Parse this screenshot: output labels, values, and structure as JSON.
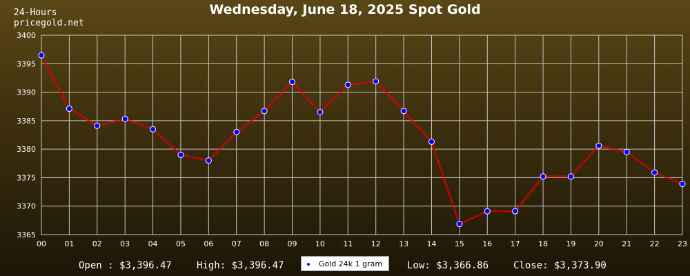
{
  "header": {
    "period": "24-Hours",
    "site": "pricegold.net"
  },
  "chart_data": {
    "type": "line",
    "title": "Wednesday, June 18, 2025 Spot Gold",
    "categories": [
      "00",
      "01",
      "02",
      "03",
      "04",
      "05",
      "06",
      "07",
      "08",
      "09",
      "10",
      "11",
      "12",
      "13",
      "14",
      "15",
      "16",
      "17",
      "18",
      "19",
      "20",
      "21",
      "22",
      "23"
    ],
    "series": [
      {
        "name": "Gold 24k 1 gram",
        "values": [
          3396.47,
          3387.1,
          3384.1,
          3385.3,
          3383.5,
          3379.0,
          3378.0,
          3383.0,
          3386.7,
          3391.8,
          3386.5,
          3391.3,
          3391.9,
          3386.7,
          3381.3,
          3366.86,
          3369.1,
          3369.1,
          3375.2,
          3375.2,
          3380.6,
          3379.5,
          3375.9,
          3373.9
        ],
        "line_color": "#e00000",
        "marker_color": "#0000ff"
      }
    ],
    "ylim": [
      3365,
      3400
    ],
    "yticks": [
      "3365",
      "3370",
      "3375",
      "3380",
      "3385",
      "3390",
      "3395",
      "3400"
    ],
    "grid": true,
    "legend_position": "bottom-center"
  },
  "stats": {
    "open": "Open : $3,396.47",
    "high": "High: $3,396.47",
    "low": "Low: $3,366.86",
    "close": "Close: $3,373.90"
  },
  "colors": {
    "grid": "#c8c8c8",
    "text": "#ffffff",
    "line": "#e00000",
    "marker": "#0000ff"
  }
}
